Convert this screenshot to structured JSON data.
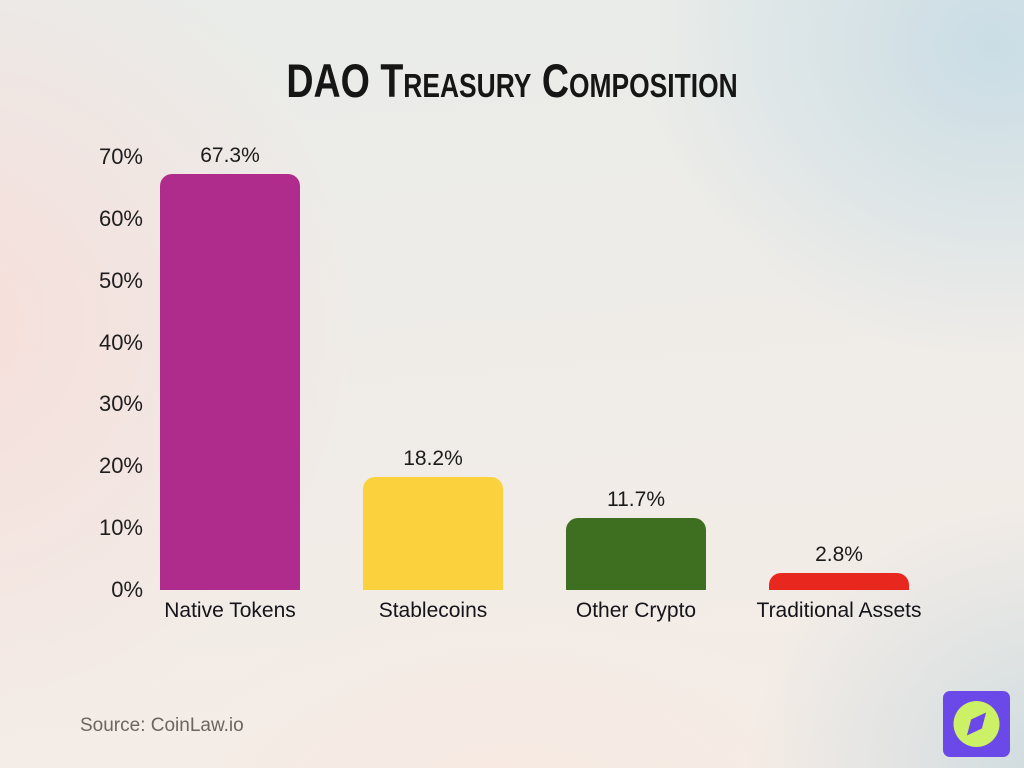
{
  "title": "DAO Treasury Composition",
  "source_note": "Source: CoinLaw.io",
  "logo": {
    "name": "coinlaw-compass-logo",
    "square_color": "#6b48e8",
    "circle_color": "#ccf166",
    "needle_color": "#6b48e8"
  },
  "colors": {
    "title_text": "#161616",
    "axis_text": "#1e1e1e",
    "source_text": "#6d655f"
  },
  "chart_data": {
    "type": "bar",
    "title": "DAO Treasury Composition",
    "categories": [
      "Native Tokens",
      "Stablecoins",
      "Other Crypto",
      "Traditional Assets"
    ],
    "values": [
      67.3,
      18.2,
      11.7,
      2.8
    ],
    "value_labels": [
      "67.3%",
      "18.2%",
      "11.7%",
      "2.8%"
    ],
    "bar_colors": [
      "#b02c8c",
      "#fbd23d",
      "#3e6e1f",
      "#e8281e"
    ],
    "xlabel": "",
    "ylabel": "",
    "ylim": [
      0,
      70
    ],
    "ytick_values": [
      0,
      10,
      20,
      30,
      40,
      50,
      60,
      70
    ],
    "ytick_labels": [
      "0%",
      "10%",
      "20%",
      "30%",
      "40%",
      "50%",
      "60%",
      "70%"
    ],
    "grid": false,
    "legend": false
  }
}
